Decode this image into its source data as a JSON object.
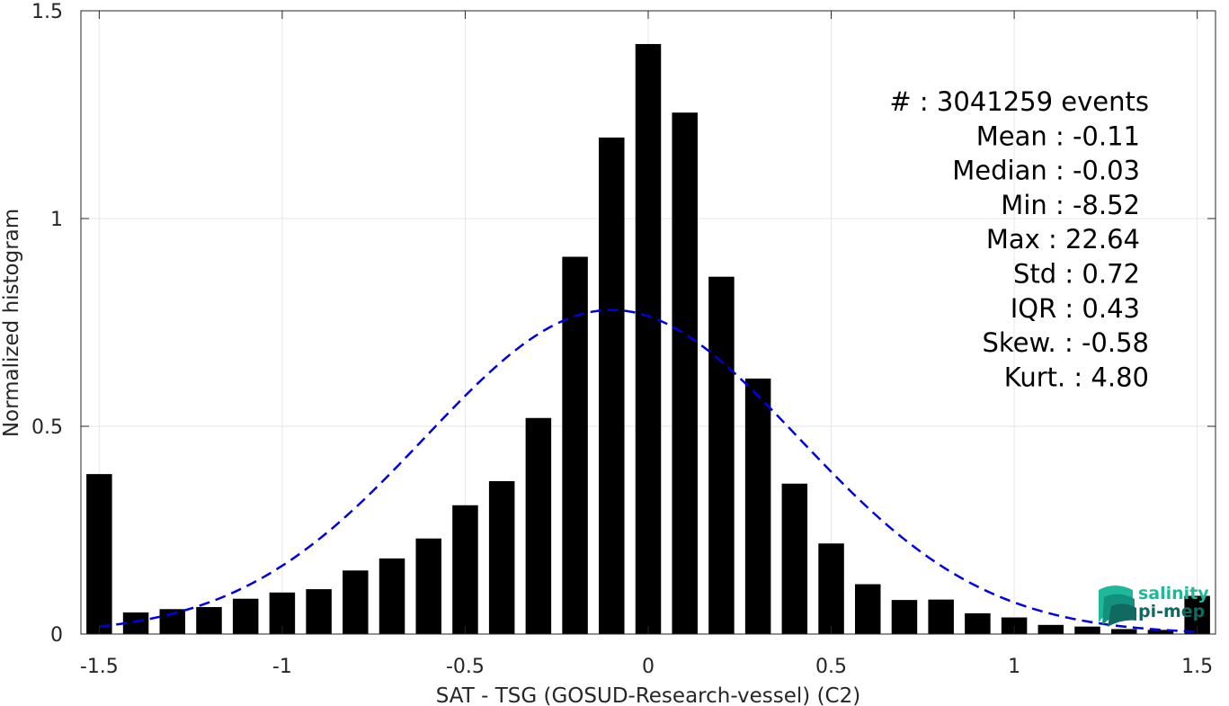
{
  "chart_data": {
    "type": "bar",
    "title": "",
    "xlabel": "SAT - TSG (GOSUD-Research-vessel) (C2)",
    "ylabel": "Normalized histogram",
    "xlim": [
      -1.55,
      1.55
    ],
    "ylim": [
      0,
      1.5
    ],
    "xticks": [
      -1.5,
      -1,
      -0.5,
      0,
      0.5,
      1,
      1.5
    ],
    "xtick_labels": [
      "-1.5",
      "-1",
      "-0.5",
      "0",
      "0.5",
      "1",
      "1.5"
    ],
    "yticks": [
      0,
      0.5,
      1,
      1.5
    ],
    "ytick_labels": [
      "0",
      "0.5",
      "1",
      "1.5"
    ],
    "grid": true,
    "bar_width": 0.07,
    "bar_color": "#000000",
    "bins": [
      {
        "x": -1.5,
        "y": 0.385
      },
      {
        "x": -1.4,
        "y": 0.052
      },
      {
        "x": -1.3,
        "y": 0.06
      },
      {
        "x": -1.2,
        "y": 0.065
      },
      {
        "x": -1.1,
        "y": 0.085
      },
      {
        "x": -1.0,
        "y": 0.1
      },
      {
        "x": -0.9,
        "y": 0.108
      },
      {
        "x": -0.8,
        "y": 0.153
      },
      {
        "x": -0.7,
        "y": 0.182
      },
      {
        "x": -0.6,
        "y": 0.23
      },
      {
        "x": -0.5,
        "y": 0.31
      },
      {
        "x": -0.4,
        "y": 0.368
      },
      {
        "x": -0.3,
        "y": 0.52
      },
      {
        "x": -0.2,
        "y": 0.908
      },
      {
        "x": -0.1,
        "y": 1.195
      },
      {
        "x": 0.0,
        "y": 1.42
      },
      {
        "x": 0.1,
        "y": 1.255
      },
      {
        "x": 0.2,
        "y": 0.86
      },
      {
        "x": 0.3,
        "y": 0.615
      },
      {
        "x": 0.4,
        "y": 0.362
      },
      {
        "x": 0.5,
        "y": 0.218
      },
      {
        "x": 0.6,
        "y": 0.12
      },
      {
        "x": 0.7,
        "y": 0.082
      },
      {
        "x": 0.8,
        "y": 0.083
      },
      {
        "x": 0.9,
        "y": 0.05
      },
      {
        "x": 1.0,
        "y": 0.04
      },
      {
        "x": 1.1,
        "y": 0.022
      },
      {
        "x": 1.2,
        "y": 0.018
      },
      {
        "x": 1.3,
        "y": 0.012
      },
      {
        "x": 1.4,
        "y": 0.01
      },
      {
        "x": 1.5,
        "y": 0.092
      }
    ],
    "fit_curve": {
      "type": "gaussian",
      "mean": -0.1,
      "std": 0.51,
      "peak": 0.78,
      "x_range": [
        -1.5,
        1.5
      ],
      "color": "#0000e6",
      "style": "dashed"
    },
    "stats": [
      {
        "label": "#  : 3041259 events"
      },
      {
        "label": "Mean : -0.11"
      },
      {
        "label": "Median : -0.03"
      },
      {
        "label": "Min : -8.52"
      },
      {
        "label": "Max : 22.64"
      },
      {
        "label": "Std : 0.72"
      },
      {
        "label": "IQR : 0.43"
      },
      {
        "label": "Skew. : -0.58"
      },
      {
        "label": "Kurt. : 4.80"
      }
    ]
  },
  "logo": {
    "line1": "salinity",
    "line2": "pi-mep",
    "color1": "#1fb89b",
    "color2": "#0f6b61"
  }
}
